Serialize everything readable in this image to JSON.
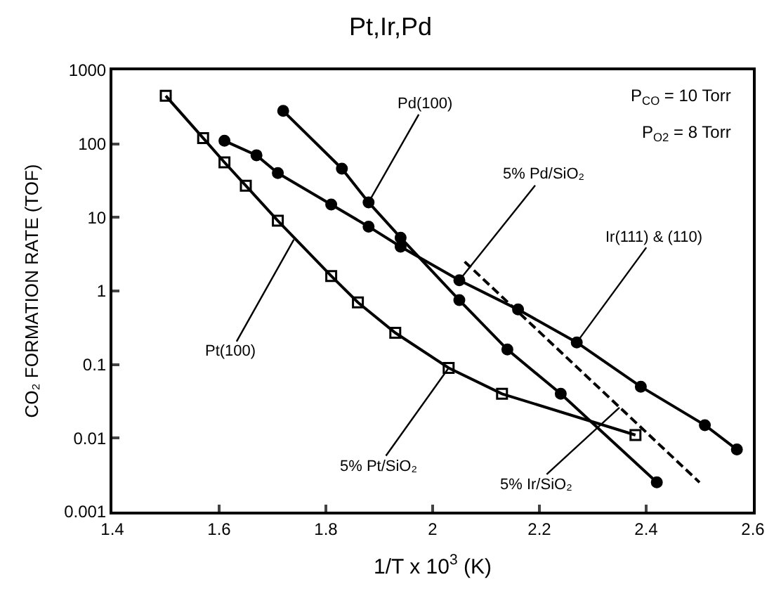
{
  "chart_data": {
    "type": "line",
    "title": "Pt,Ir,Pd",
    "xlabel": "1/T x 10$^{3}$ (K)",
    "ylabel": "CO₂ FORMATION RATE (TOF)",
    "log": "y",
    "grid": false,
    "line_style": "solid",
    "xlim": [
      1.4,
      2.6
    ],
    "xticks": [
      1.4,
      1.6,
      1.8,
      2.0,
      2.2,
      2.4,
      2.6
    ],
    "ylim": [
      0.001,
      1000
    ],
    "yticks": [
      0.001,
      0.01,
      0.1,
      1,
      10,
      100,
      1000
    ],
    "series": [
      {
        "color": "#000000",
        "marker": "circle",
        "x": [
          1.72,
          1.83,
          1.88,
          1.94,
          2.05,
          2.14,
          2.24,
          2.42
        ],
        "values": [
          280,
          46,
          16,
          5.3,
          0.75,
          0.16,
          0.04,
          0.0025
        ]
      },
      {
        "color": "#000000",
        "marker": "circle",
        "x": [
          1.61,
          1.67,
          1.71,
          1.81,
          1.88,
          1.94,
          2.05,
          2.16,
          2.27,
          2.39,
          2.51,
          2.57
        ],
        "values": [
          110,
          70,
          40,
          15,
          7.5,
          4,
          1.4,
          0.56,
          0.2,
          0.05,
          0.015,
          0.007
        ]
      },
      {
        "color": "#000000",
        "marker": "square",
        "x": [
          1.5,
          1.57,
          1.61,
          1.65,
          1.71,
          1.81,
          1.86,
          1.93,
          2.03,
          2.13,
          2.38
        ],
        "values": [
          450,
          120,
          56,
          27,
          9,
          1.6,
          0.7,
          0.27,
          0.09,
          0.04,
          0.011
        ]
      },
      {
        "color": "#000000",
        "marker": "none",
        "line_style": "dashed",
        "x": [
          2.06,
          2.5
        ],
        "values": [
          2.5,
          0.0025
        ]
      }
    ],
    "annotations": [
      "P$_{CO}$ = 10 Torr",
      "P$_{O2}$ = 8 Torr",
      {
        "text": "Pd(100)",
        "x": 1.88,
        "y": 16
      },
      {
        "text": "5% Pd/SiO₂",
        "x": 2.05,
        "y": 1.4
      },
      {
        "text": "Ir(111) & (110)",
        "x": 2.27,
        "y": 0.2
      },
      {
        "text": "Pt(100)",
        "x": 1.74,
        "y": 5
      },
      {
        "text": "5% Pt/SiO₂",
        "x": 2.03,
        "y": 0.09
      },
      {
        "text": "5% Ir/SiO₂",
        "x": 2.35,
        "y": 0.026
      }
    ]
  }
}
